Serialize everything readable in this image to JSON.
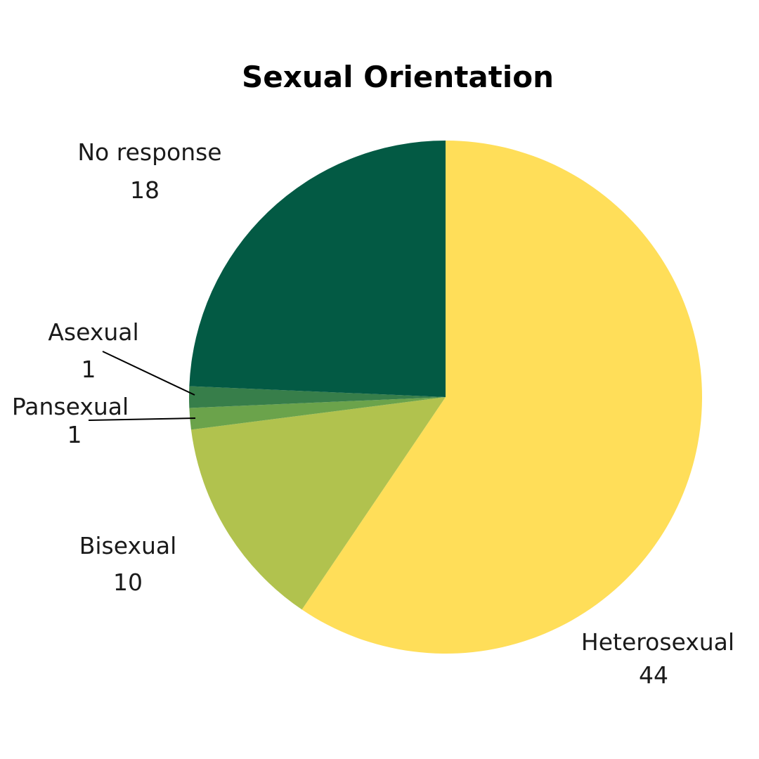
{
  "chart_data": {
    "type": "pie",
    "title": "Sexual Orientation",
    "slices": [
      {
        "name": "Heterosexual",
        "value": 44,
        "color": "#ffde59"
      },
      {
        "name": "Bisexual",
        "value": 10,
        "color": "#b1c24e"
      },
      {
        "name": "Pansexual",
        "value": 1,
        "color": "#6ba34b"
      },
      {
        "name": "Asexual",
        "value": 1,
        "color": "#377e4a"
      },
      {
        "name": "No response",
        "value": 18,
        "color": "#035a44"
      }
    ]
  }
}
